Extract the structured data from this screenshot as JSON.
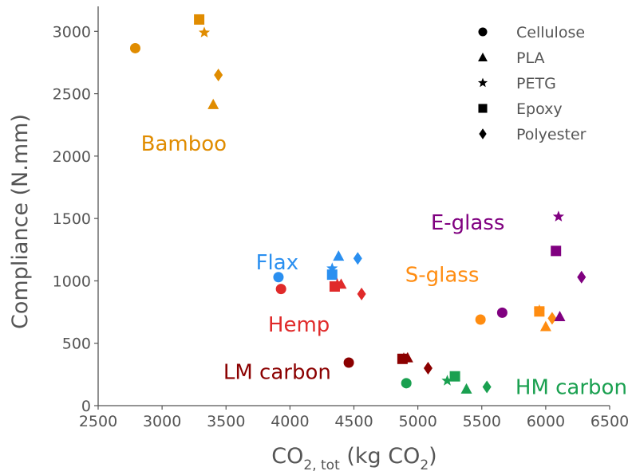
{
  "chart_data": {
    "type": "scatter",
    "xlabel_main": "CO",
    "xlabel_sub": "2, tot",
    "xlabel_unit_open": " (kg CO",
    "xlabel_unit_sub": "2",
    "xlabel_unit_close": ")",
    "ylabel": "Compliance (N.mm)",
    "xlim": [
      2500,
      6500
    ],
    "ylim": [
      0,
      3200
    ],
    "xticks": [
      2500,
      3000,
      3500,
      4000,
      4500,
      5000,
      5500,
      6000,
      6500
    ],
    "yticks": [
      0,
      500,
      1000,
      1500,
      2000,
      2500,
      3000
    ],
    "legend": {
      "position": "top-right",
      "entries": [
        {
          "marker": "circle",
          "label": "Cellulose"
        },
        {
          "marker": "triangle",
          "label": "PLA"
        },
        {
          "marker": "star",
          "label": "PETG"
        },
        {
          "marker": "square",
          "label": "Epoxy"
        },
        {
          "marker": "diamond",
          "label": "Polyester"
        }
      ]
    },
    "groups": [
      {
        "label": "Bamboo",
        "color": "#e08c00",
        "label_at": [
          3170,
          2100
        ],
        "points": [
          {
            "marker": "circle",
            "x": 2790,
            "y": 2865
          },
          {
            "marker": "triangle",
            "x": 3400,
            "y": 2415
          },
          {
            "marker": "star",
            "x": 3330,
            "y": 2990
          },
          {
            "marker": "square",
            "x": 3290,
            "y": 3095
          },
          {
            "marker": "diamond",
            "x": 3440,
            "y": 2650
          }
        ]
      },
      {
        "label": "Flax",
        "color": "#2a8ff0",
        "label_at": [
          3900,
          1150
        ],
        "points": [
          {
            "marker": "circle",
            "x": 3910,
            "y": 1030
          },
          {
            "marker": "triangle",
            "x": 4380,
            "y": 1200
          },
          {
            "marker": "star",
            "x": 4330,
            "y": 1100
          },
          {
            "marker": "square",
            "x": 4330,
            "y": 1050
          },
          {
            "marker": "diamond",
            "x": 4530,
            "y": 1180
          }
        ]
      },
      {
        "label": "Hemp",
        "color": "#e02a2a",
        "label_at": [
          4070,
          650
        ],
        "points": [
          {
            "marker": "circle",
            "x": 3930,
            "y": 935
          },
          {
            "marker": "triangle",
            "x": 4400,
            "y": 975
          },
          {
            "marker": "star",
            "x": 4370,
            "y": 975
          },
          {
            "marker": "square",
            "x": 4350,
            "y": 955
          },
          {
            "marker": "diamond",
            "x": 4560,
            "y": 895
          }
        ]
      },
      {
        "label": "LM carbon",
        "color": "#8b0000",
        "label_at": [
          3900,
          270
        ],
        "points": [
          {
            "marker": "circle",
            "x": 4460,
            "y": 345
          },
          {
            "marker": "triangle",
            "x": 4920,
            "y": 385
          },
          {
            "marker": "star",
            "x": 4890,
            "y": 380
          },
          {
            "marker": "square",
            "x": 4880,
            "y": 375
          },
          {
            "marker": "diamond",
            "x": 5080,
            "y": 300
          }
        ]
      },
      {
        "label": "HM carbon",
        "color": "#1aa050",
        "label_at": [
          6200,
          150
        ],
        "points": [
          {
            "marker": "circle",
            "x": 4910,
            "y": 180
          },
          {
            "marker": "triangle",
            "x": 5380,
            "y": 135
          },
          {
            "marker": "star",
            "x": 5230,
            "y": 200
          },
          {
            "marker": "square",
            "x": 5290,
            "y": 235
          },
          {
            "marker": "diamond",
            "x": 5540,
            "y": 150
          }
        ]
      },
      {
        "label": "S-glass",
        "color": "#ff8c10",
        "label_at": [
          5190,
          1050
        ],
        "points": [
          {
            "marker": "circle",
            "x": 5490,
            "y": 690
          },
          {
            "marker": "triangle",
            "x": 6000,
            "y": 635
          },
          {
            "marker": "star",
            "x": 5950,
            "y": 765
          },
          {
            "marker": "square",
            "x": 5950,
            "y": 755
          },
          {
            "marker": "diamond",
            "x": 6050,
            "y": 700
          }
        ]
      },
      {
        "label": "E-glass",
        "color": "#800080",
        "label_at": [
          5390,
          1470
        ],
        "points": [
          {
            "marker": "circle",
            "x": 5660,
            "y": 745
          },
          {
            "marker": "triangle",
            "x": 6110,
            "y": 715
          },
          {
            "marker": "star",
            "x": 6100,
            "y": 1515
          },
          {
            "marker": "square",
            "x": 6080,
            "y": 1240
          },
          {
            "marker": "diamond",
            "x": 6280,
            "y": 1030
          }
        ]
      }
    ]
  }
}
